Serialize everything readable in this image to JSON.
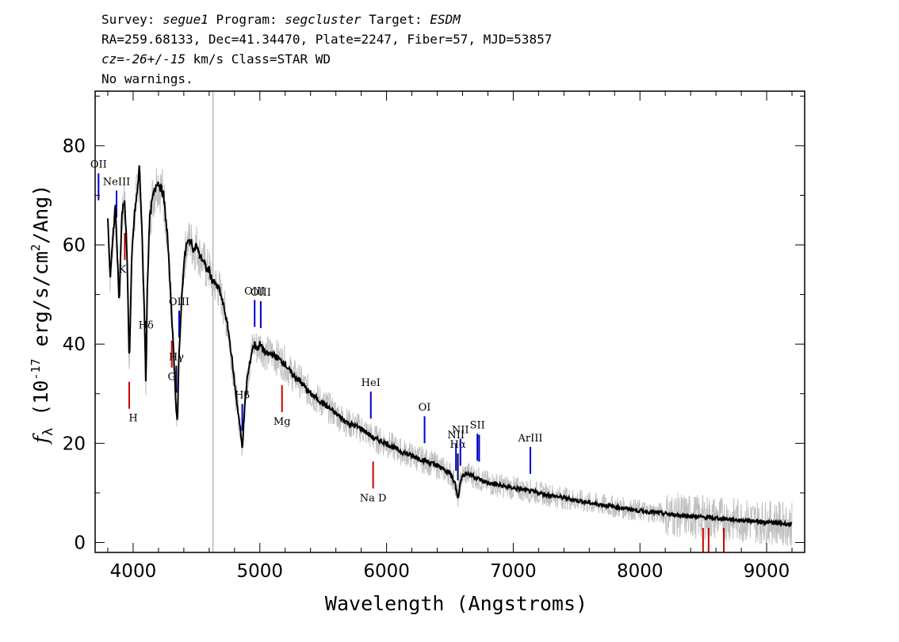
{
  "header": {
    "survey_label": "Survey:",
    "survey": "segue1",
    "program_label": "Program:",
    "program": "segcluster",
    "target_label": "Target:",
    "target": "ESDM",
    "line2": "RA=259.68133, Dec=41.34470, Plate=2247, Fiber=57, MJD=53857",
    "cz_label": "cz=",
    "cz_value": "-26+/-15",
    "cz_rest": " km/s Class=STAR WD",
    "warnings": "No warnings."
  },
  "chart_data": {
    "type": "line",
    "xlabel": "Wavelength (Angstroms)",
    "ylabel": "f_λ (10^-17 erg/s/cm^2/Ang)",
    "xlim": [
      3700,
      9300
    ],
    "ylim": [
      -2,
      91
    ],
    "xticks": [
      4000,
      5000,
      6000,
      7000,
      8000,
      9000
    ],
    "yticks": [
      0,
      20,
      40,
      60,
      80
    ],
    "vertical_marker_x": 4630,
    "series": [
      {
        "style": "black-smoothed",
        "x": [
          3800,
          3820,
          3840,
          3860,
          3875,
          3890,
          3910,
          3930,
          3950,
          3970,
          3990,
          4010,
          4030,
          4050,
          4070,
          4090,
          4101,
          4110,
          4130,
          4150,
          4170,
          4190,
          4210,
          4240,
          4270,
          4300,
          4320,
          4340,
          4350,
          4360,
          4380,
          4400,
          4420,
          4450,
          4480,
          4500,
          4520,
          4550,
          4580,
          4600,
          4620,
          4650,
          4680,
          4700,
          4720,
          4750,
          4780,
          4800,
          4820,
          4840,
          4861,
          4880,
          4900,
          4920,
          4940,
          4960,
          4980,
          5000,
          5050,
          5100,
          5150,
          5200,
          5250,
          5300,
          5400,
          5500,
          5600,
          5700,
          5800,
          5900,
          6000,
          6100,
          6200,
          6300,
          6400,
          6500,
          6540,
          6563,
          6590,
          6620,
          6680,
          6750,
          6800,
          6900,
          7000,
          7100,
          7200,
          7300,
          7400,
          7500,
          7600,
          7700,
          7800,
          7900,
          8000,
          8100,
          8200,
          8300,
          8400,
          8500,
          8600,
          8700,
          8800,
          8900,
          9000,
          9100,
          9200
        ],
        "y": [
          65,
          53,
          62,
          68,
          58,
          48,
          66,
          69,
          60,
          36,
          58,
          66,
          70,
          76,
          62,
          45,
          31,
          50,
          65,
          69,
          71,
          73,
          72,
          70,
          62,
          48,
          38,
          27,
          24,
          36,
          48,
          56,
          60,
          61,
          59,
          60,
          58,
          57,
          55,
          55,
          53,
          52,
          51,
          49,
          47,
          43,
          37,
          32,
          28,
          24,
          19,
          27,
          33,
          36,
          39,
          40,
          39,
          40,
          38,
          38,
          37,
          36,
          34,
          33,
          30,
          28,
          26,
          24,
          23,
          21,
          20,
          18.5,
          17.5,
          16.5,
          15.5,
          14,
          12,
          9,
          13,
          14,
          13.5,
          12.5,
          12,
          11.5,
          11,
          10.5,
          10,
          9.5,
          9,
          8.5,
          8,
          7.6,
          7.2,
          6.8,
          6.4,
          6.1,
          5.8,
          5.5,
          5.3,
          5.1,
          4.9,
          4.7,
          4.5,
          4.3,
          4.1,
          3.9,
          3.6
        ]
      }
    ],
    "emission_lines": [
      {
        "label": "OII",
        "x": 3727,
        "color": "#0000cc"
      },
      {
        "label": "NeIII",
        "x": 3869,
        "color": "#0000cc"
      },
      {
        "label": "Hδ",
        "x": 4102,
        "color": "#000055"
      },
      {
        "label": "Hγ",
        "x": 4341,
        "color": "#000055"
      },
      {
        "label": "OIII",
        "x": 4363,
        "color": "#0000cc"
      },
      {
        "label": "Hβ",
        "x": 4861,
        "color": "#0000cc"
      },
      {
        "label": "OIII",
        "x": 4959,
        "color": "#0000cc"
      },
      {
        "label": "OIII",
        "x": 5007,
        "color": "#0000cc"
      },
      {
        "label": "HeI",
        "x": 5876,
        "color": "#0000cc"
      },
      {
        "label": "OI",
        "x": 6300,
        "color": "#0000cc"
      },
      {
        "label": "NII",
        "x": 6548,
        "color": "#0000cc"
      },
      {
        "label": "Hα",
        "x": 6563,
        "color": "#000055"
      },
      {
        "label": "NII",
        "x": 6583,
        "color": "#0000cc"
      },
      {
        "label": "SII",
        "x": 6717,
        "color": "#0000cc"
      },
      {
        "label": "SII",
        "x": 6731,
        "color": "#0000cc"
      },
      {
        "label": "ArIII",
        "x": 7135,
        "color": "#0000cc"
      }
    ],
    "absorption_lines": [
      {
        "label": "K",
        "x": 3934,
        "color": "#cc0000"
      },
      {
        "label": "H",
        "x": 3969,
        "color": "#cc0000"
      },
      {
        "label": "G",
        "x": 4305,
        "color": "#cc0000"
      },
      {
        "label": "Mg",
        "x": 5175,
        "color": "#cc0000"
      },
      {
        "label": "Na D",
        "x": 5894,
        "color": "#cc0000"
      },
      {
        "label": "",
        "x": 8498,
        "color": "#cc0000"
      },
      {
        "label": "",
        "x": 8542,
        "color": "#cc0000"
      },
      {
        "label": "",
        "x": 8662,
        "color": "#cc0000"
      }
    ]
  }
}
